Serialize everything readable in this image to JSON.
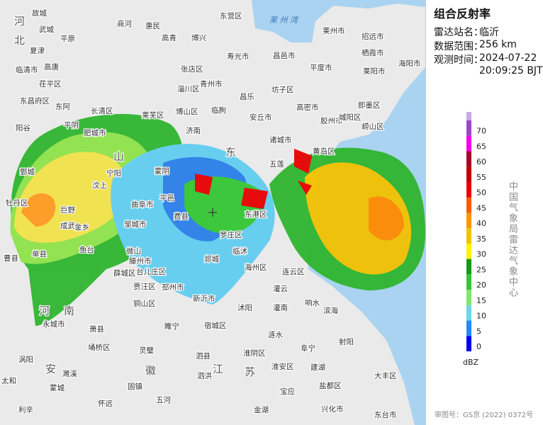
{
  "panel": {
    "title": "组合反射率",
    "station_label": "雷达站名：",
    "station": "临沂",
    "range_label": "数据范围：",
    "range": "256 km",
    "time_label": "观测时间：",
    "date": "2024-07-22",
    "time": "20:09:25 BJT"
  },
  "legend": {
    "values": [
      0,
      5,
      10,
      15,
      20,
      25,
      30,
      35,
      40,
      45,
      50,
      55,
      60,
      65,
      70
    ],
    "colors": [
      "#0000f0",
      "#1e8cff",
      "#6ad8e8",
      "#7ee86a",
      "#33c633",
      "#169a16",
      "#fff200",
      "#f2c200",
      "#ff9400",
      "#ff5a00",
      "#e80000",
      "#c00000",
      "#a8002c",
      "#f000f0",
      "#9c44cc"
    ],
    "unit": "dBZ",
    "vertical_text": "中国气象局雷达气象中心"
  },
  "footer": "审图号：GS京 (2022) 0372号",
  "map": {
    "provinces": [
      "河",
      "北",
      "山",
      "东",
      "河",
      "南",
      "安",
      "徽",
      "江",
      "苏"
    ],
    "sea": "莱 州 湾",
    "places": [
      "故城",
      "武城",
      "平原",
      "夏津",
      "高唐",
      "临清市",
      "茌平区",
      "东昌府区",
      "东阿",
      "阳谷",
      "商河",
      "惠民",
      "高青",
      "博兴",
      "东营区",
      "寿光市",
      "昌邑市",
      "莱州市",
      "招远市",
      "栖霞市",
      "莱阳市",
      "海阳市",
      "平度市",
      "坊子区",
      "高密市",
      "胶州市",
      "城阳区",
      "崂山区",
      "即墨区",
      "黄岛区",
      "诸城市",
      "五莲",
      "安丘市",
      "昌乐",
      "临朐",
      "青州市",
      "张店区",
      "淄川区",
      "博山区",
      "莱芜区",
      "济南",
      "长清区",
      "平阴",
      "肥城市",
      "宁阳",
      "汶上",
      "曲阜市",
      "邹城市",
      "巨野",
      "鄄城",
      "牡丹区",
      "曹县",
      "单县",
      "成武",
      "金乡",
      "鱼台",
      "微山",
      "滕州市",
      "薛城区",
      "台儿庄区",
      "贾汪区",
      "邳州市",
      "新沂市",
      "铜山区",
      "宿城区",
      "沭阳",
      "灌南",
      "灌云",
      "海州区",
      "连云区",
      "东港区",
      "罗庄区",
      "郯城",
      "临沭",
      "蒙阴",
      "平邑",
      "费县",
      "响水",
      "滨海",
      "射阳",
      "阜宁",
      "建湖",
      "盐都区",
      "涟水",
      "淮安区",
      "淮阴区",
      "宝应",
      "金湖",
      "兴化市",
      "泗洪",
      "睢宁",
      "萧县",
      "永城市",
      "濉溪",
      "灵璧",
      "泗县",
      "埇桥区",
      "固镇",
      "五河",
      "怀远",
      "蒙城",
      "涡阳",
      "利辛",
      "太和",
      "大丰区",
      "东台市"
    ]
  }
}
